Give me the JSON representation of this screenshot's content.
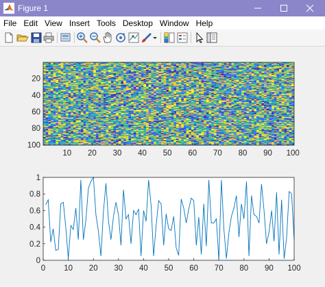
{
  "window": {
    "title": "Figure 1"
  },
  "menu": [
    "File",
    "Edit",
    "View",
    "Insert",
    "Tools",
    "Desktop",
    "Window",
    "Help"
  ],
  "toolbar": {
    "icons": [
      "new-figure-icon",
      "open-file-icon",
      "save-icon",
      "print-icon",
      "print-preview-icon",
      "zoom-in-icon",
      "zoom-out-icon",
      "pan-icon",
      "rotate-3d-icon",
      "data-cursor-icon",
      "brush-icon",
      "dropdown-arrow-icon",
      "colorbar-icon",
      "legend-icon",
      "pointer-icon",
      "property-editor-icon"
    ]
  },
  "colors": {
    "titlebar": "#8b86c9",
    "line": "#0072bd",
    "colormap": [
      "#3e26a8",
      "#4743f8",
      "#2c72fc",
      "#1598d2",
      "#0cb2b4",
      "#2cbc8e",
      "#86bf54",
      "#d0ba3d",
      "#fcce2e",
      "#f9fb15"
    ]
  },
  "chart_data": [
    {
      "type": "heatmap",
      "rows": 100,
      "cols": 100,
      "values": "uniform random values in [0,1]",
      "xticks": [
        "10",
        "20",
        "30",
        "40",
        "50",
        "60",
        "70",
        "80",
        "90",
        "100"
      ],
      "yticks": [
        "20",
        "40",
        "60",
        "80",
        "100"
      ],
      "xlim": [
        0.5,
        100.5
      ],
      "ylim": [
        0.5,
        100.5
      ]
    },
    {
      "type": "line",
      "x": [
        1,
        2,
        3,
        4,
        5,
        6,
        7,
        8,
        9,
        10,
        11,
        12,
        13,
        14,
        15,
        16,
        17,
        18,
        19,
        20,
        21,
        22,
        23,
        24,
        25,
        26,
        27,
        28,
        29,
        30,
        31,
        32,
        33,
        34,
        35,
        36,
        37,
        38,
        39,
        40,
        41,
        42,
        43,
        44,
        45,
        46,
        47,
        48,
        49,
        50,
        51,
        52,
        53,
        54,
        55,
        56,
        57,
        58,
        59,
        60,
        61,
        62,
        63,
        64,
        65,
        66,
        67,
        68,
        69,
        70,
        71,
        72,
        73,
        74,
        75,
        76,
        77,
        78,
        79,
        80,
        81,
        82,
        83,
        84,
        85,
        86,
        87,
        88,
        89,
        90,
        91,
        92,
        93,
        94,
        95,
        96,
        97,
        98,
        99,
        100
      ],
      "y": [
        0.67,
        0.73,
        0.22,
        0.38,
        0.12,
        0.13,
        0.68,
        0.7,
        0.4,
        0.02,
        0.42,
        0.37,
        0.63,
        0.25,
        0.97,
        0.25,
        0.48,
        0.87,
        0.95,
        1.0,
        0.55,
        0.35,
        0.05,
        0.58,
        0.93,
        0.48,
        0.25,
        0.53,
        0.7,
        0.55,
        0.18,
        0.85,
        0.5,
        0.55,
        0.2,
        0.6,
        0.55,
        0.62,
        0.05,
        0.6,
        0.47,
        0.97,
        0.66,
        0.05,
        0.42,
        0.72,
        0.68,
        0.18,
        0.56,
        0.38,
        0.36,
        0.53,
        0.15,
        0.06,
        0.74,
        0.63,
        0.45,
        0.62,
        0.75,
        0.72,
        0.18,
        0.52,
        0.07,
        0.68,
        0.17,
        0.97,
        0.45,
        0.45,
        0.5,
        0.0,
        0.97,
        0.38,
        0.02,
        0.33,
        0.53,
        0.63,
        0.78,
        0.28,
        0.68,
        0.5,
        0.95,
        0.05,
        0.78,
        0.55,
        0.53,
        0.45,
        0.92,
        0.6,
        0.2,
        0.34,
        0.6,
        0.23,
        0.82,
        0.07,
        0.73,
        0.02,
        0.27,
        0.83,
        0.8,
        0.25
      ],
      "xlim": [
        0,
        100
      ],
      "ylim": [
        0,
        1
      ],
      "xticks": [
        "0",
        "10",
        "20",
        "30",
        "40",
        "50",
        "60",
        "70",
        "80",
        "90",
        "100"
      ],
      "yticks": [
        "0",
        "0.2",
        "0.4",
        "0.6",
        "0.8",
        "1"
      ]
    }
  ]
}
